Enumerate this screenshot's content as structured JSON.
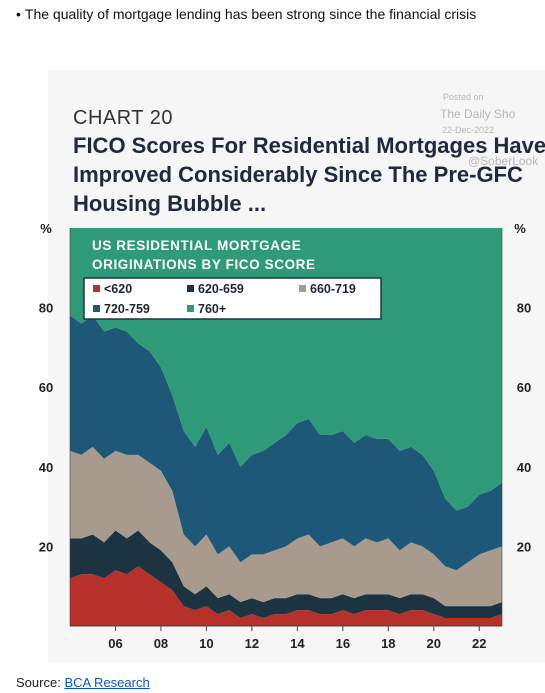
{
  "bullet": {
    "symbol": "•",
    "text": "The quality of mortgage lending has been strong since the financial crisis"
  },
  "watermark": {
    "posted_on": "Posted on",
    "site": "The Daily Sho",
    "date": "22-Dec-2022",
    "handle": "@SoberLook"
  },
  "header": {
    "chart_number": "CHART 20",
    "title_lines": [
      "FICO Scores For Residential Mortgages Have",
      "Improved Considerably Since The Pre-GFC",
      "Housing Bubble ..."
    ]
  },
  "source": {
    "label": "Source:",
    "link_text": "BCA Research"
  },
  "colors": {
    "lt620": "#b7312b",
    "r620_659": "#1c3442",
    "r660_719": "#a89a8d",
    "r720_759": "#1e5878",
    "ge760": "#2f9a78",
    "legend_bg": "#ffffff",
    "legend_border": "#1c3442"
  },
  "chart_data": {
    "type": "area",
    "stacked": true,
    "title": "US RESIDENTIAL MORTGAGE ORIGINATIONS BY FICO SCORE",
    "title_lines": [
      "US RESIDENTIAL MORTGAGE",
      "ORIGINATIONS BY FICO SCORE"
    ],
    "left_unit": "%",
    "right_unit": "%",
    "ylim": [
      0,
      100
    ],
    "y_ticks": [
      20,
      40,
      60,
      80
    ],
    "xlim": [
      2004.0,
      2023.0
    ],
    "x_ticks": [
      2006,
      2008,
      2010,
      2012,
      2014,
      2016,
      2018,
      2020,
      2022
    ],
    "x_tick_labels": [
      "06",
      "08",
      "10",
      "12",
      "14",
      "16",
      "18",
      "20",
      "22"
    ],
    "legend": [
      "<620",
      "620-659",
      "660-719",
      "720-759",
      "760+"
    ],
    "legend_placement": "top-left",
    "x": [
      2004.0,
      2004.5,
      2005.0,
      2005.5,
      2006.0,
      2006.5,
      2007.0,
      2007.5,
      2008.0,
      2008.5,
      2009.0,
      2009.5,
      2010.0,
      2010.5,
      2011.0,
      2011.5,
      2012.0,
      2012.5,
      2013.0,
      2013.5,
      2014.0,
      2014.5,
      2015.0,
      2015.5,
      2016.0,
      2016.5,
      2017.0,
      2017.5,
      2018.0,
      2018.5,
      2019.0,
      2019.5,
      2020.0,
      2020.5,
      2021.0,
      2021.5,
      2022.0,
      2022.5,
      2023.0
    ],
    "series": [
      {
        "name": "<620",
        "key": "lt620",
        "values": [
          12,
          13,
          13,
          12,
          14,
          13,
          15,
          13,
          11,
          9,
          5,
          4,
          5,
          3,
          4,
          2,
          3,
          2,
          3,
          3,
          4,
          4,
          3,
          3,
          4,
          3,
          4,
          4,
          4,
          3,
          4,
          4,
          3,
          2,
          2,
          2,
          2,
          2,
          3
        ]
      },
      {
        "name": "620-659",
        "key": "r620_659",
        "values": [
          10,
          9,
          10,
          9,
          10,
          9,
          9,
          8,
          8,
          7,
          5,
          4,
          5,
          4,
          4,
          4,
          4,
          4,
          4,
          4,
          4,
          4,
          4,
          4,
          4,
          4,
          4,
          4,
          4,
          4,
          4,
          4,
          4,
          3,
          3,
          3,
          3,
          3,
          3
        ]
      },
      {
        "name": "660-719",
        "key": "r660_719",
        "values": [
          22,
          21,
          22,
          21,
          20,
          21,
          19,
          20,
          20,
          18,
          13,
          12,
          13,
          11,
          12,
          10,
          11,
          12,
          12,
          13,
          14,
          15,
          13,
          14,
          14,
          13,
          14,
          13,
          14,
          12,
          13,
          12,
          11,
          10,
          9,
          11,
          13,
          14,
          14
        ]
      },
      {
        "name": "720-759",
        "key": "r720_759",
        "values": [
          34,
          33,
          33,
          32,
          31,
          31,
          28,
          28,
          26,
          24,
          26,
          25,
          27,
          25,
          26,
          24,
          25,
          26,
          27,
          28,
          29,
          29,
          28,
          27,
          27,
          26,
          26,
          26,
          25,
          25,
          24,
          23,
          21,
          17,
          15,
          14,
          15,
          15,
          16
        ]
      },
      {
        "name": "760+",
        "key": "ge760",
        "values": [
          22,
          24,
          22,
          26,
          25,
          26,
          29,
          31,
          35,
          42,
          51,
          55,
          50,
          57,
          54,
          60,
          57,
          56,
          54,
          52,
          49,
          48,
          52,
          52,
          51,
          54,
          52,
          53,
          53,
          56,
          55,
          57,
          61,
          68,
          71,
          70,
          67,
          66,
          64
        ]
      }
    ]
  }
}
